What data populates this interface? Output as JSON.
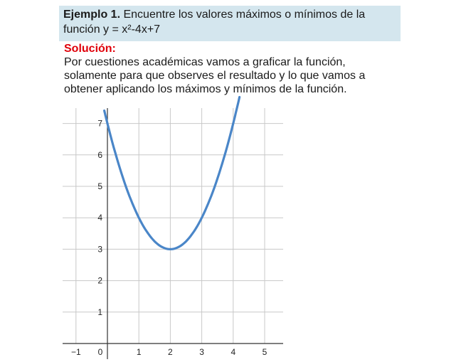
{
  "example": {
    "label": "Ejemplo 1.",
    "text": " Encuentre los valores máximos o mínimos de la función y = x²-4x+7"
  },
  "solution": {
    "label": "Solución:",
    "text": "Por cuestiones académicas vamos a graficar la función, solamente para que observes el resultado y lo que vamos a obtener aplicando los máximos y mínimos de la función."
  },
  "colors": {
    "example_bg": "#d4e6ee",
    "solution_label": "#e0000a",
    "curve": "#4a86c8",
    "grid": "#c8c8c8"
  },
  "chart_data": {
    "type": "line",
    "function": "y = x²-4x+7",
    "x": [
      -0.1,
      0,
      0.5,
      1,
      1.5,
      2,
      2.5,
      3,
      3.5,
      4,
      4.2
    ],
    "y": [
      7.41,
      7,
      5.25,
      4,
      3.25,
      3,
      3.25,
      4,
      5.25,
      7,
      7.84
    ],
    "x_ticks": [
      "−1",
      "0",
      "1",
      "2",
      "3",
      "4",
      "5"
    ],
    "y_ticks": [
      "1",
      "2",
      "3",
      "4",
      "5",
      "6",
      "7"
    ],
    "xlim": [
      -1.3,
      5.5
    ],
    "ylim": [
      -0.2,
      7.5
    ],
    "grid": true
  }
}
